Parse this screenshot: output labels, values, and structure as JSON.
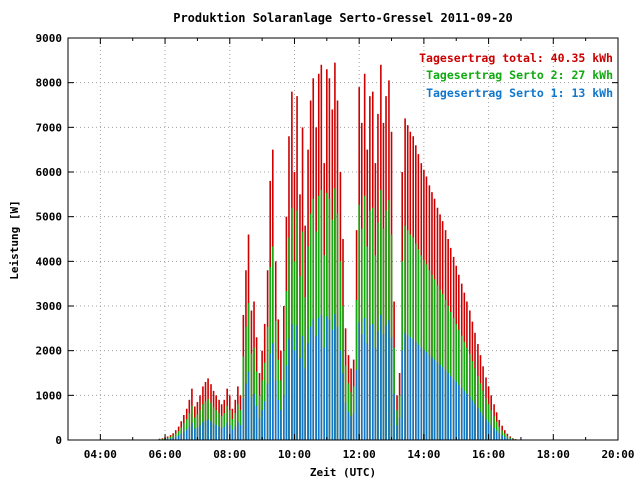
{
  "chart_data": {
    "type": "bar",
    "title": "Produktion Solaranlage Serto-Gressel 2011-09-20",
    "xlabel": "Zeit (UTC)",
    "ylabel": "Leistung [W]",
    "x_domain_hours": [
      3.0,
      20.0
    ],
    "ylim": [
      0,
      9000
    ],
    "x_ticks": [
      {
        "value": 4,
        "label": "04:00"
      },
      {
        "value": 6,
        "label": "06:00"
      },
      {
        "value": 8,
        "label": "08:00"
      },
      {
        "value": 10,
        "label": "10:00"
      },
      {
        "value": 12,
        "label": "12:00"
      },
      {
        "value": 14,
        "label": "14:00"
      },
      {
        "value": 16,
        "label": "16:00"
      },
      {
        "value": 18,
        "label": "18:00"
      },
      {
        "value": 20,
        "label": "20:00"
      }
    ],
    "y_ticks": [
      0,
      1000,
      2000,
      3000,
      4000,
      5000,
      6000,
      7000,
      8000,
      9000
    ],
    "grid": true,
    "grid_style": "dotted",
    "legend_position": "top-right",
    "legend": [
      {
        "label": "Tagesertrag total: 40.35 kWh",
        "color": "#cc0000"
      },
      {
        "label": "Tagesertrag Serto 2: 27 kWh",
        "color": "#11aa11"
      },
      {
        "label": "Tagesertrag Serto 1: 13 kWh",
        "color": "#1177cc"
      }
    ],
    "colors": {
      "total": "#cc0000",
      "serto2": "#11aa11",
      "serto1": "#1177cc"
    },
    "x_hours": [
      5.83,
      5.92,
      6.0,
      6.08,
      6.17,
      6.25,
      6.33,
      6.42,
      6.5,
      6.58,
      6.67,
      6.75,
      6.83,
      6.92,
      7.0,
      7.08,
      7.17,
      7.25,
      7.33,
      7.42,
      7.5,
      7.58,
      7.67,
      7.75,
      7.83,
      7.92,
      8.0,
      8.08,
      8.17,
      8.25,
      8.33,
      8.42,
      8.5,
      8.58,
      8.67,
      8.75,
      8.83,
      8.92,
      9.0,
      9.08,
      9.17,
      9.25,
      9.33,
      9.42,
      9.5,
      9.58,
      9.67,
      9.75,
      9.83,
      9.92,
      10.0,
      10.08,
      10.17,
      10.25,
      10.33,
      10.42,
      10.5,
      10.58,
      10.67,
      10.75,
      10.83,
      10.92,
      11.0,
      11.08,
      11.17,
      11.25,
      11.33,
      11.42,
      11.5,
      11.58,
      11.67,
      11.75,
      11.83,
      11.92,
      12.0,
      12.08,
      12.17,
      12.25,
      12.33,
      12.42,
      12.5,
      12.58,
      12.67,
      12.75,
      12.83,
      12.92,
      13.0,
      13.08,
      13.17,
      13.25,
      13.33,
      13.42,
      13.5,
      13.58,
      13.67,
      13.75,
      13.83,
      13.92,
      14.0,
      14.08,
      14.17,
      14.25,
      14.33,
      14.42,
      14.5,
      14.58,
      14.67,
      14.75,
      14.83,
      14.92,
      15.0,
      15.08,
      15.17,
      15.25,
      15.33,
      15.42,
      15.5,
      15.58,
      15.67,
      15.75,
      15.83,
      15.92,
      16.0,
      16.08,
      16.17,
      16.25,
      16.33,
      16.42,
      16.5,
      16.58,
      16.67,
      16.75,
      16.83,
      16.92,
      17.0,
      17.08,
      17.17,
      17.25,
      17.33
    ],
    "series": [
      {
        "name": "Tagesertrag total",
        "key": "total",
        "values": [
          30,
          40,
          60,
          80,
          110,
          150,
          220,
          300,
          420,
          560,
          700,
          900,
          1150,
          750,
          850,
          1000,
          1200,
          1300,
          1380,
          1250,
          1100,
          1000,
          900,
          800,
          900,
          1150,
          1000,
          700,
          900,
          1200,
          1000,
          2800,
          3800,
          4600,
          2900,
          3100,
          2300,
          1500,
          2000,
          2600,
          3800,
          5800,
          6500,
          4000,
          2700,
          2000,
          3000,
          5000,
          6800,
          7800,
          6000,
          7700,
          5500,
          7000,
          4800,
          6500,
          7600,
          8100,
          7000,
          8200,
          8400,
          6200,
          8300,
          8100,
          7400,
          8450,
          7600,
          6000,
          4500,
          2500,
          1900,
          1600,
          1800,
          4700,
          7900,
          7100,
          8200,
          6500,
          7700,
          7800,
          6200,
          7300,
          8400,
          7100,
          7700,
          8050,
          6900,
          3100,
          1000,
          1500,
          6000,
          7200,
          7050,
          6900,
          6800,
          6600,
          6400,
          6200,
          6050,
          5900,
          5700,
          5550,
          5400,
          5200,
          5050,
          4900,
          4700,
          4500,
          4300,
          4100,
          3900,
          3700,
          3500,
          3300,
          3100,
          2900,
          2650,
          2400,
          2150,
          1900,
          1650,
          1400,
          1200,
          1000,
          800,
          620,
          450,
          320,
          220,
          140,
          80,
          40,
          20,
          10,
          5
        ]
      },
      {
        "name": "Tagesertrag Serto 2",
        "key": "serto2",
        "values": [
          20,
          27,
          40,
          53,
          73,
          100,
          147,
          200,
          280,
          373,
          467,
          600,
          767,
          500,
          567,
          667,
          800,
          867,
          920,
          833,
          733,
          667,
          600,
          533,
          600,
          767,
          667,
          467,
          600,
          800,
          667,
          1867,
          2533,
          3067,
          1933,
          2067,
          1533,
          1000,
          1333,
          1733,
          2533,
          3867,
          4333,
          2667,
          1800,
          1333,
          2000,
          3333,
          4533,
          5200,
          4000,
          5133,
          3667,
          4667,
          3200,
          4333,
          5067,
          5400,
          4667,
          5467,
          5600,
          4133,
          5533,
          5400,
          4933,
          5633,
          5067,
          4000,
          3000,
          1667,
          1267,
          1067,
          1200,
          3133,
          5267,
          4733,
          5467,
          4333,
          5133,
          5200,
          4133,
          4867,
          5600,
          4733,
          5133,
          5367,
          4600,
          2067,
          667,
          1000,
          4000,
          4800,
          4700,
          4600,
          4533,
          4400,
          4267,
          4133,
          4033,
          3933,
          3800,
          3700,
          3600,
          3467,
          3367,
          3267,
          3133,
          3000,
          2867,
          2733,
          2600,
          2467,
          2333,
          2200,
          2067,
          1933,
          1767,
          1600,
          1433,
          1267,
          1100,
          933,
          800,
          667,
          533,
          413,
          300,
          213,
          147,
          93,
          53,
          27,
          13,
          7,
          3
        ]
      },
      {
        "name": "Tagesertrag Serto 1",
        "key": "serto1",
        "values": [
          10,
          13,
          20,
          27,
          37,
          50,
          73,
          100,
          140,
          187,
          233,
          300,
          383,
          250,
          283,
          333,
          400,
          433,
          460,
          417,
          367,
          333,
          300,
          267,
          300,
          383,
          333,
          233,
          300,
          400,
          333,
          933,
          1267,
          1533,
          967,
          1033,
          767,
          500,
          667,
          867,
          1267,
          1933,
          2167,
          1333,
          900,
          667,
          1000,
          1667,
          2267,
          2600,
          2000,
          2567,
          1833,
          2333,
          1600,
          2167,
          2533,
          2700,
          2333,
          2733,
          2800,
          2067,
          2767,
          2700,
          2467,
          2817,
          2533,
          2000,
          1500,
          833,
          633,
          533,
          600,
          1567,
          2633,
          2367,
          2733,
          2167,
          2567,
          2600,
          2067,
          2433,
          2800,
          2367,
          2567,
          2683,
          2300,
          1033,
          333,
          500,
          2000,
          2400,
          2350,
          2300,
          2267,
          2200,
          2133,
          2067,
          2017,
          1967,
          1900,
          1850,
          1800,
          1733,
          1683,
          1633,
          1567,
          1500,
          1433,
          1367,
          1300,
          1233,
          1167,
          1100,
          1033,
          967,
          883,
          800,
          717,
          633,
          550,
          467,
          400,
          333,
          267,
          207,
          150,
          107,
          73,
          47,
          27,
          13,
          7,
          3,
          2
        ]
      }
    ]
  }
}
